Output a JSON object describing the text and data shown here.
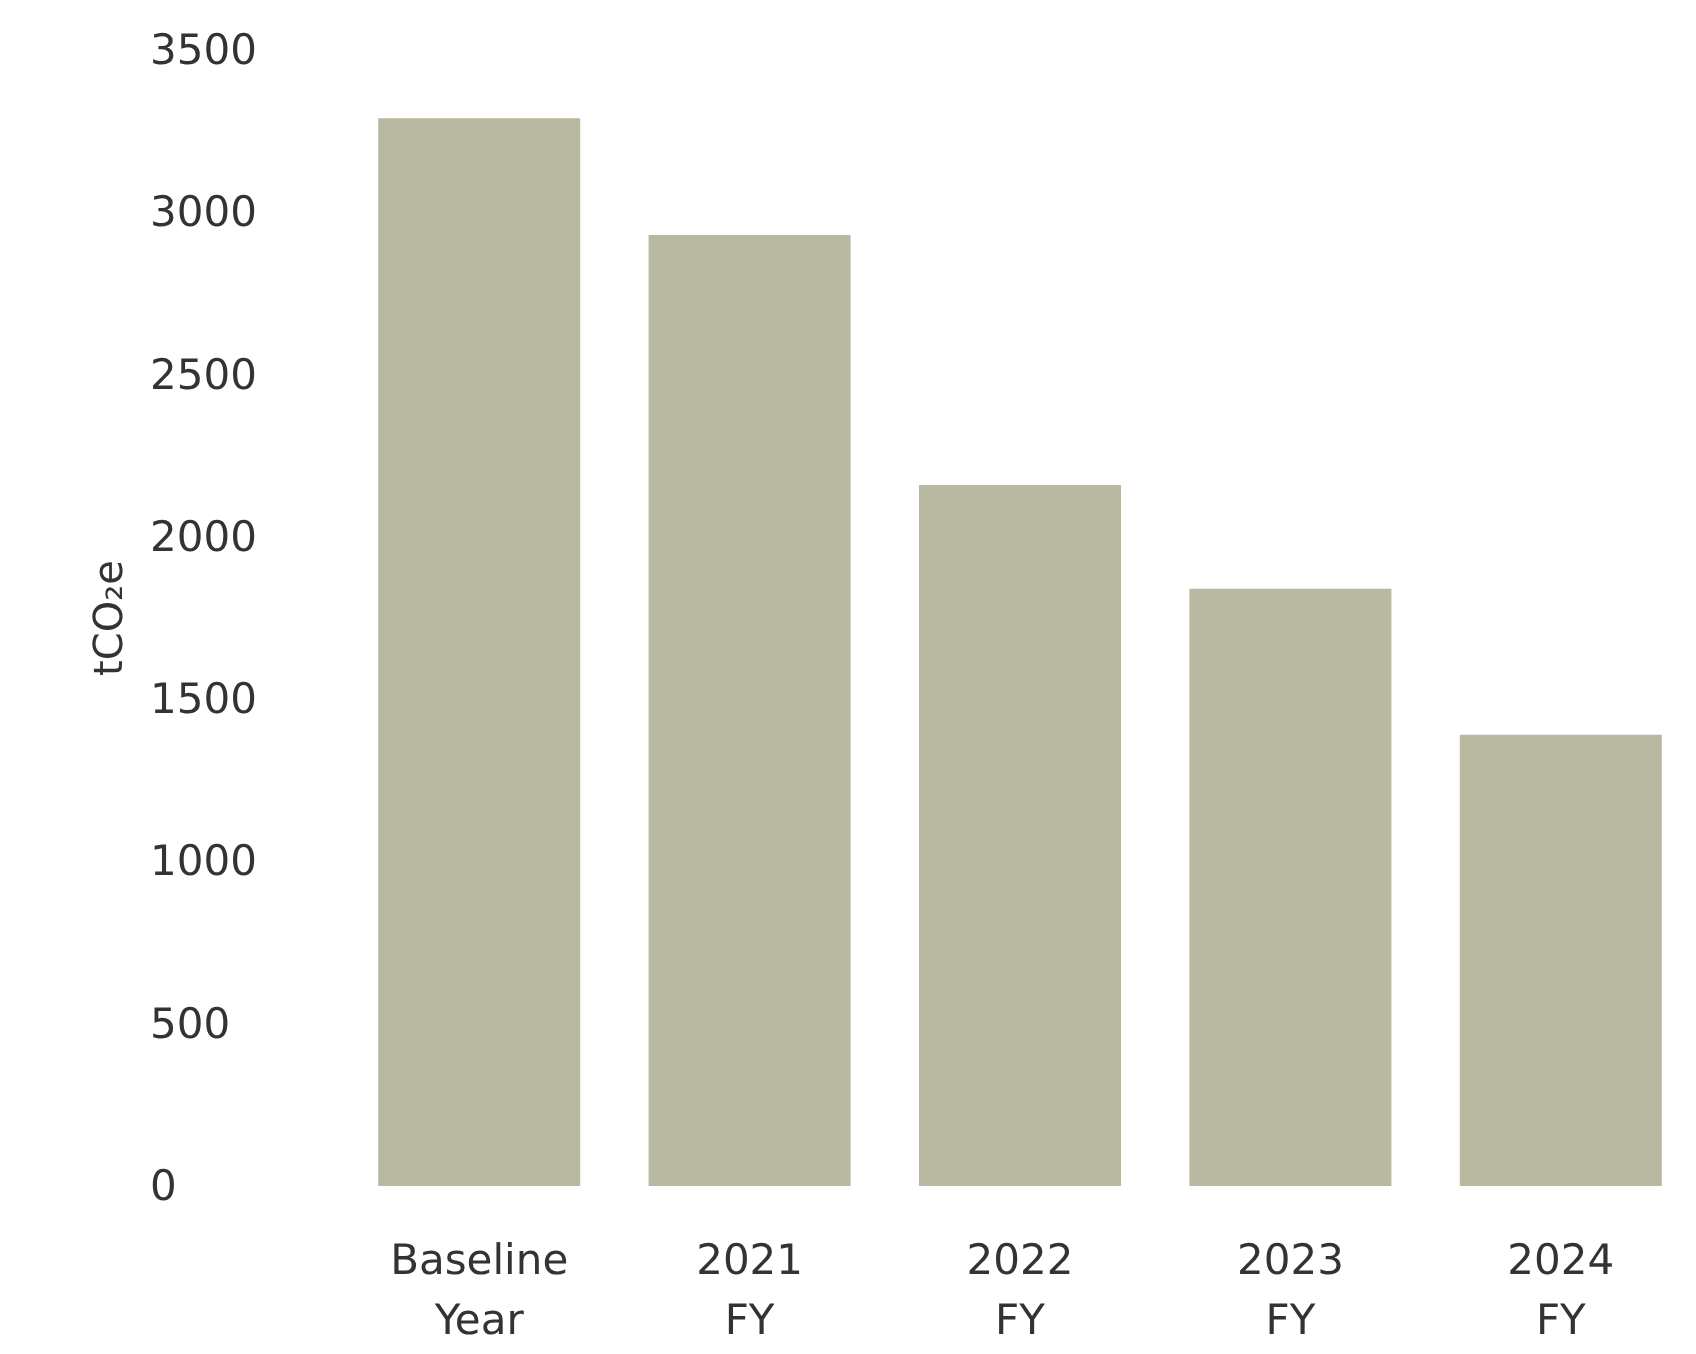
{
  "chart_data": {
    "type": "bar",
    "ylabel": "tCO₂e",
    "categories": [
      "Baseline Year",
      "2021 FY",
      "2022 FY",
      "2023 FY",
      "2024 FY"
    ],
    "values": [
      3290,
      2930,
      2160,
      1840,
      1390
    ],
    "color": "#b9b8a0",
    "ylim": [
      0,
      3500
    ],
    "yticks": [
      0,
      500,
      1000,
      1500,
      2000,
      2500,
      3000,
      3500
    ]
  }
}
